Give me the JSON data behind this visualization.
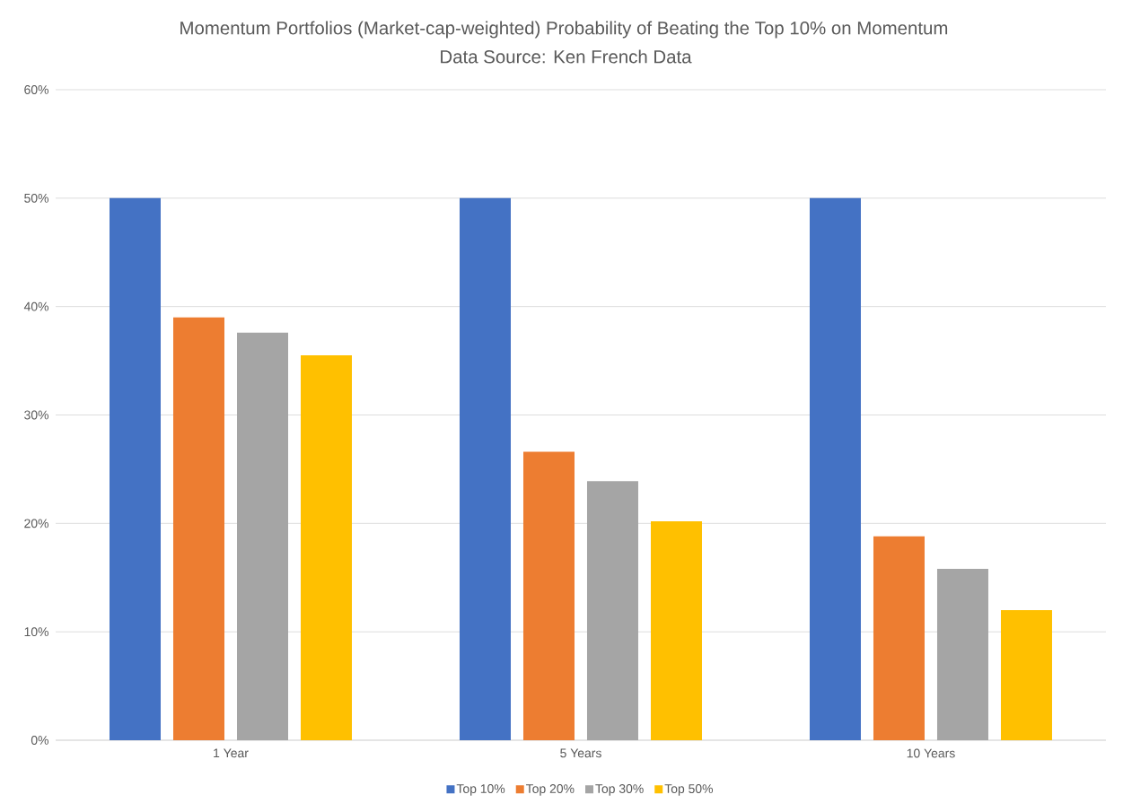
{
  "chart_data": {
    "type": "bar",
    "title": "Momentum Portfolios (Market-cap-weighted) Probability of Beating the Top 10% on Momentum",
    "subtitle": "Data Source: Ken French Data",
    "categories": [
      "1 Year",
      "5 Years",
      "10 Years"
    ],
    "series": [
      {
        "name": "Top 10%",
        "color": "#4472c4",
        "values": [
          50,
          50,
          50
        ]
      },
      {
        "name": "Top 20%",
        "color": "#ed7d31",
        "values": [
          39.0,
          26.6,
          18.8
        ]
      },
      {
        "name": "Top 30%",
        "color": "#a5a5a5",
        "values": [
          37.6,
          23.9,
          15.8
        ]
      },
      {
        "name": "Top 50%",
        "color": "#ffc000",
        "values": [
          35.5,
          20.2,
          12.0
        ]
      }
    ],
    "ylim": [
      0,
      60
    ],
    "yticks": [
      {
        "value": 0,
        "label": "0%"
      },
      {
        "value": 10,
        "label": "10%"
      },
      {
        "value": 20,
        "label": "20%"
      },
      {
        "value": 30,
        "label": "30%"
      },
      {
        "value": 40,
        "label": "40%"
      },
      {
        "value": 50,
        "label": "50%"
      },
      {
        "value": 60,
        "label": "60%"
      }
    ],
    "grid": "y",
    "legend": "bottom"
  }
}
